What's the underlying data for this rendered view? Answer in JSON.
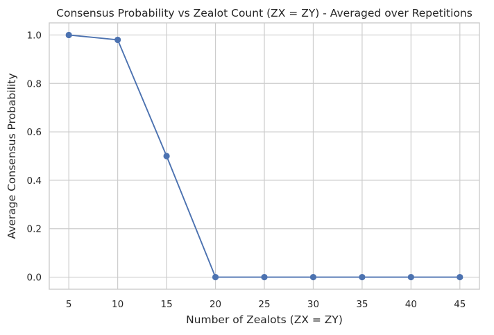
{
  "chart_data": {
    "type": "line",
    "title": "Consensus Probability vs Zealot Count (ZX = ZY) - Averaged over Repetitions",
    "xlabel": "Number of Zealots (ZX = ZY)",
    "ylabel": "Average Consensus Probability",
    "x": [
      5,
      10,
      15,
      20,
      25,
      30,
      35,
      40,
      45
    ],
    "series": [
      {
        "values": [
          1.0,
          0.98,
          0.5,
          0.0,
          0.0,
          0.0,
          0.0,
          0.0,
          0.0
        ],
        "color": "#4c72b0",
        "marker": "circle"
      }
    ],
    "xlim": [
      3,
      47
    ],
    "ylim": [
      -0.05,
      1.05
    ],
    "xticks": [
      "5",
      "10",
      "15",
      "20",
      "25",
      "30",
      "35",
      "40",
      "45"
    ],
    "yticks": [
      "0.0",
      "0.2",
      "0.4",
      "0.6",
      "0.8",
      "1.0"
    ],
    "grid": true,
    "legend": "none"
  }
}
